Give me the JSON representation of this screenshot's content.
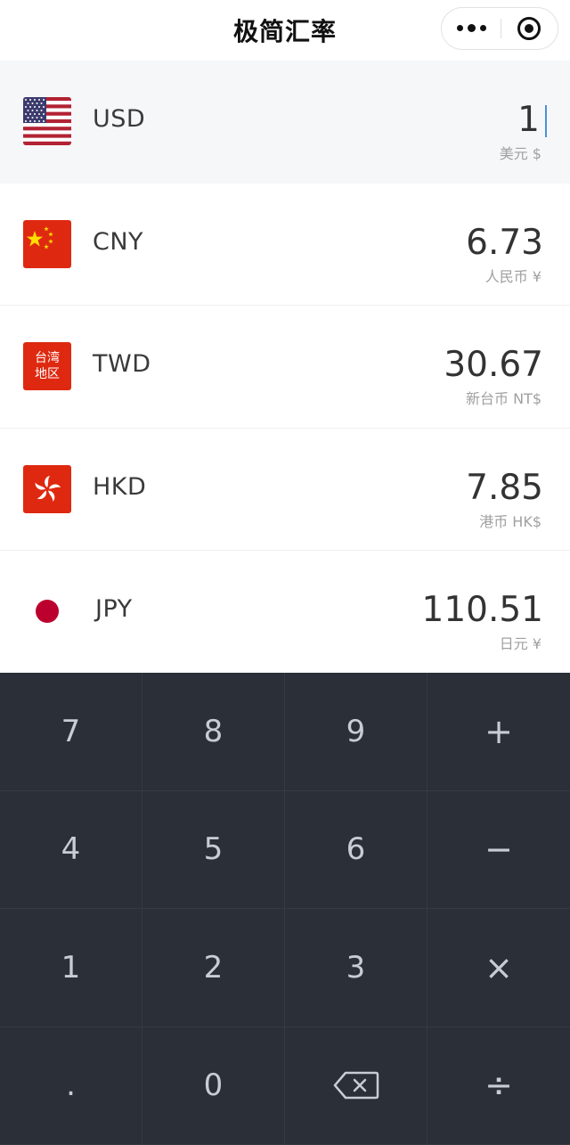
{
  "header": {
    "title": "极简汇率"
  },
  "currencies": [
    {
      "code": "USD",
      "amount": "1",
      "unit": "美元 $"
    },
    {
      "code": "CNY",
      "amount": "6.73",
      "unit": "人民币 ¥"
    },
    {
      "code": "TWD",
      "amount": "30.67",
      "unit": "新台币 NT$",
      "flag_text_1": "台湾",
      "flag_text_2": "地区"
    },
    {
      "code": "HKD",
      "amount": "7.85",
      "unit": "港币 HK$"
    },
    {
      "code": "JPY",
      "amount": "110.51",
      "unit": "日元 ¥"
    }
  ],
  "keypad": {
    "keys": [
      "7",
      "8",
      "9",
      "+",
      "4",
      "5",
      "6",
      "−",
      "1",
      "2",
      "3",
      "×",
      ".",
      "0",
      "backspace",
      "÷"
    ]
  },
  "colors": {
    "keypad_bg": "#2b2f38",
    "key_text": "#c9ccd3",
    "flag_red": "#de2910",
    "jp_red": "#bc002d"
  }
}
